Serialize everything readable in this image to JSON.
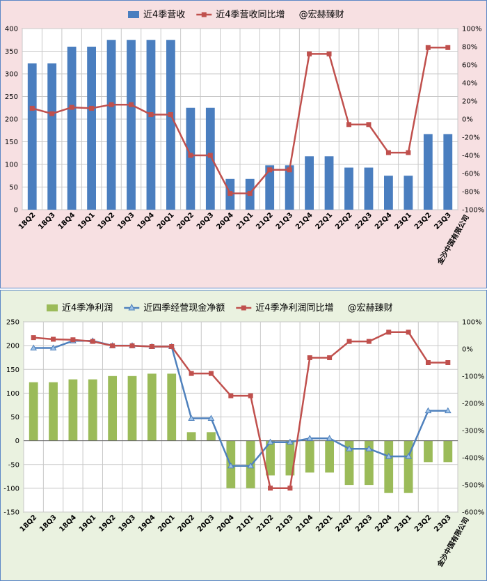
{
  "chart_data": [
    {
      "type": "bar",
      "categories": [
        "18Q2",
        "18Q3",
        "18Q4",
        "19Q1",
        "19Q2",
        "19Q3",
        "19Q4",
        "20Q1",
        "20Q2",
        "20Q3",
        "20Q4",
        "21Q1",
        "21Q2",
        "21Q3",
        "21Q4",
        "22Q1",
        "22Q2",
        "22Q3",
        "22Q4",
        "23Q1",
        "23Q2",
        "23Q3"
      ],
      "company": "金沙中国有限公司",
      "legend_position": "top",
      "grid": true,
      "ylim_left": [
        0,
        400
      ],
      "yticks_left": [
        "0",
        "50",
        "100",
        "150",
        "200",
        "250",
        "300",
        "350",
        "400"
      ],
      "ylim_right": [
        -100,
        100
      ],
      "yticks_right": [
        "-100%",
        "-80%",
        "-60%",
        "-40%",
        "-20%",
        "0%",
        "20%",
        "40%",
        "60%",
        "80%",
        "100%"
      ],
      "series": [
        {
          "name": "近4季营收",
          "kind": "bar",
          "axis": "left",
          "color": "#4a7ebf",
          "values": [
            323,
            323,
            360,
            360,
            375,
            375,
            375,
            375,
            225,
            225,
            68,
            68,
            98,
            98,
            118,
            118,
            93,
            93,
            75,
            75,
            167,
            167
          ]
        },
        {
          "name": "近4季营收同比增",
          "kind": "line",
          "axis": "right",
          "color": "#c0504d",
          "values": [
            12,
            6,
            13,
            12,
            16,
            16,
            5,
            5,
            -40,
            -40,
            -82,
            -82,
            -56,
            -56,
            72,
            72,
            -6,
            -6,
            -37,
            -37,
            79,
            79
          ]
        }
      ],
      "watermark": "@宏赫臻财"
    },
    {
      "type": "bar",
      "categories": [
        "18Q2",
        "18Q3",
        "18Q4",
        "19Q1",
        "19Q2",
        "19Q3",
        "19Q4",
        "20Q1",
        "20Q2",
        "20Q3",
        "20Q4",
        "21Q1",
        "21Q2",
        "21Q3",
        "21Q4",
        "22Q1",
        "22Q2",
        "22Q3",
        "22Q4",
        "23Q1",
        "23Q2",
        "23Q3"
      ],
      "company": "金沙中国有限公司",
      "legend_position": "top",
      "grid": true,
      "ylim_left": [
        -150,
        250
      ],
      "yticks_left": [
        "-150",
        "-100",
        "-50",
        "0",
        "50",
        "100",
        "150",
        "200",
        "250"
      ],
      "ylim_right": [
        -600,
        100
      ],
      "yticks_right": [
        "-600%",
        "-500%",
        "-400%",
        "-300%",
        "-200%",
        "-100%",
        "0%",
        "100%"
      ],
      "series": [
        {
          "name": "近4季净利润",
          "kind": "bar",
          "axis": "left",
          "color": "#9bbb59",
          "values": [
            123,
            123,
            129,
            129,
            136,
            136,
            141,
            141,
            18,
            18,
            -100,
            -100,
            -73,
            -73,
            -67,
            -67,
            -93,
            -93,
            -110,
            -110,
            -45,
            -45
          ]
        },
        {
          "name": "近四季经营现金净额",
          "kind": "line",
          "axis": "left",
          "color": "#4f81bd",
          "marker": "triangle",
          "values": [
            195,
            195,
            210,
            210,
            200,
            200,
            198,
            198,
            47,
            47,
            -53,
            -53,
            -3,
            -3,
            5,
            5,
            -17,
            -17,
            -33,
            -33,
            63,
            63
          ]
        },
        {
          "name": "近4季净利润同比增",
          "kind": "line",
          "axis": "right",
          "color": "#c0504d",
          "marker": "square",
          "values": [
            42,
            36,
            34,
            28,
            12,
            12,
            9,
            9,
            -90,
            -90,
            -172,
            -172,
            -512,
            -512,
            -32,
            -32,
            28,
            28,
            62,
            62,
            -50,
            -50
          ]
        }
      ],
      "watermark": "@宏赫臻财"
    }
  ]
}
